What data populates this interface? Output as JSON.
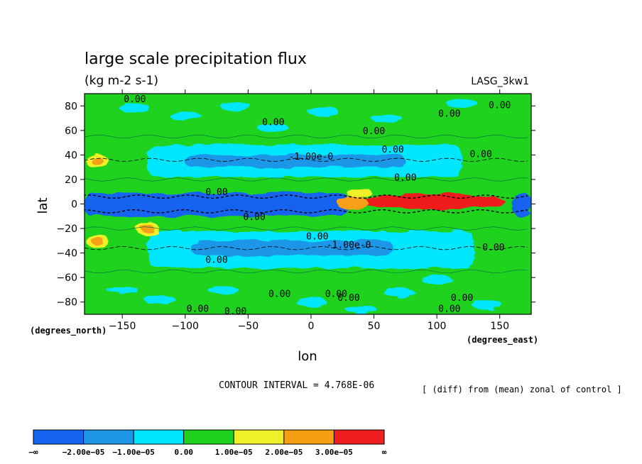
{
  "chart_data": {
    "type": "heatmap",
    "title": "large scale precipitation flux",
    "subtitle": "(kg m-2 s-1)",
    "run_label": "LASG_3kw1",
    "xlabel": "lon",
    "ylabel": "lat",
    "x_unit_label": "(degrees_east)",
    "y_unit_label": "(degrees_north)",
    "xlim": [
      -180,
      175
    ],
    "ylim": [
      -90,
      90
    ],
    "x_ticks": [
      -150,
      -100,
      -50,
      0,
      50,
      100,
      150
    ],
    "x_tick_labels": [
      "−150",
      "−100",
      "−50",
      "0",
      "50",
      "100",
      "150"
    ],
    "y_ticks": [
      80,
      60,
      40,
      20,
      0,
      -20,
      -40,
      -60,
      -80
    ],
    "y_tick_labels": [
      "80",
      "60",
      "40",
      "20",
      "0",
      "−20",
      "−40",
      "−60",
      "−80"
    ],
    "contour_interval_text": "CONTOUR INTERVAL = 4.768E-06",
    "note": "[ (diff) from (mean) zonal of control ]",
    "colors": {
      "dark_blue": "#1464f0",
      "mid_blue": "#1e96e6",
      "cyan": "#00e6ff",
      "green": "#1ed21e",
      "yellow": "#f0f028",
      "orange": "#f5a014",
      "red": "#f01e1e"
    },
    "colorbar": {
      "bins": [
        {
          "from": "-inf",
          "to": -2e-05,
          "color": "#1464f0"
        },
        {
          "from": -2e-05,
          "to": -1e-05,
          "color": "#1e96e6"
        },
        {
          "from": -1e-05,
          "to": 0.0,
          "color": "#00e6ff"
        },
        {
          "from": 0.0,
          "to": 1e-05,
          "color": "#1ed21e"
        },
        {
          "from": 1e-05,
          "to": 2e-05,
          "color": "#f0f028"
        },
        {
          "from": 2e-05,
          "to": 3e-05,
          "color": "#f5a014"
        },
        {
          "from": 3e-05,
          "to": "inf",
          "color": "#f01e1e"
        }
      ],
      "labels": [
        "−∞",
        "−2.00e−05",
        "−1.00e−05",
        "0.00",
        "1.00e−05",
        "2.00e−05",
        "3.00e−05",
        "∞"
      ]
    },
    "regions": [
      {
        "kind": "band",
        "lat_min": -10,
        "lat_max": 9,
        "lon_min": -180,
        "lon_max": 30,
        "color": "#1464f0",
        "description": "equatorial negative band"
      },
      {
        "kind": "band",
        "lat_min": -10,
        "lat_max": 9,
        "lon_min": 160,
        "lon_max": 175,
        "color": "#1464f0"
      },
      {
        "kind": "band",
        "lat_min": 22,
        "lat_max": 48,
        "lon_min": -130,
        "lon_max": 120,
        "color": "#00e6ff"
      },
      {
        "kind": "band",
        "lat_min": 30,
        "lat_max": 40,
        "lon_min": -100,
        "lon_max": 75,
        "color": "#1e96e6"
      },
      {
        "kind": "band",
        "lat_min": -52,
        "lat_max": -22,
        "lon_min": -130,
        "lon_max": 130,
        "color": "#00e6ff"
      },
      {
        "kind": "band",
        "lat_min": -42,
        "lat_max": -30,
        "lon_min": -95,
        "lon_max": 65,
        "color": "#1e96e6"
      },
      {
        "kind": "patch",
        "lat": 2,
        "lon": 95,
        "color": "#f01e1e",
        "description": "positive maximum over Indian Ocean / Asian sector"
      },
      {
        "kind": "patch",
        "lat": 35,
        "lon": -170,
        "color": "#f0f028"
      },
      {
        "kind": "patch",
        "lat": -30,
        "lon": -170,
        "color": "#f0f028"
      },
      {
        "kind": "patch",
        "lat": -20,
        "lon": -130,
        "color": "#f0f028"
      }
    ],
    "contour_labels": [
      {
        "text": "0.00",
        "lon": -140,
        "lat": 86
      },
      {
        "text": "0.00",
        "lon": 110,
        "lat": 74
      },
      {
        "text": "0.00",
        "lon": 150,
        "lat": 81
      },
      {
        "text": "0.00",
        "lon": -30,
        "lat": 67
      },
      {
        "text": "0.00",
        "lon": 50,
        "lat": 60
      },
      {
        "text": "0.00",
        "lon": 65,
        "lat": 45
      },
      {
        "text": "0.00",
        "lon": 135,
        "lat": 41
      },
      {
        "text": "0.00",
        "lon": 75,
        "lat": 22
      },
      {
        "text": "0.00",
        "lon": -75,
        "lat": 10
      },
      {
        "text": "0.00",
        "lon": -45,
        "lat": -10
      },
      {
        "text": "0.00",
        "lon": 5,
        "lat": -26
      },
      {
        "text": "0.00",
        "lon": -75,
        "lat": -45
      },
      {
        "text": "0.00",
        "lon": 145,
        "lat": -35
      },
      {
        "text": "0.00",
        "lon": -25,
        "lat": -73
      },
      {
        "text": "0.00",
        "lon": 30,
        "lat": -76
      },
      {
        "text": "0.00",
        "lon": 120,
        "lat": -76
      },
      {
        "text": "0.00",
        "lon": 110,
        "lat": -85
      },
      {
        "text": "0.00",
        "lon": -90,
        "lat": -85
      },
      {
        "text": "0.00",
        "lon": -60,
        "lat": -87
      },
      {
        "text": "0.00",
        "lon": 20,
        "lat": -73
      },
      {
        "text": "-1.00e-0",
        "lon": 0,
        "lat": 39
      },
      {
        "text": "-1.00e-0",
        "lon": 30,
        "lat": -33
      }
    ]
  }
}
